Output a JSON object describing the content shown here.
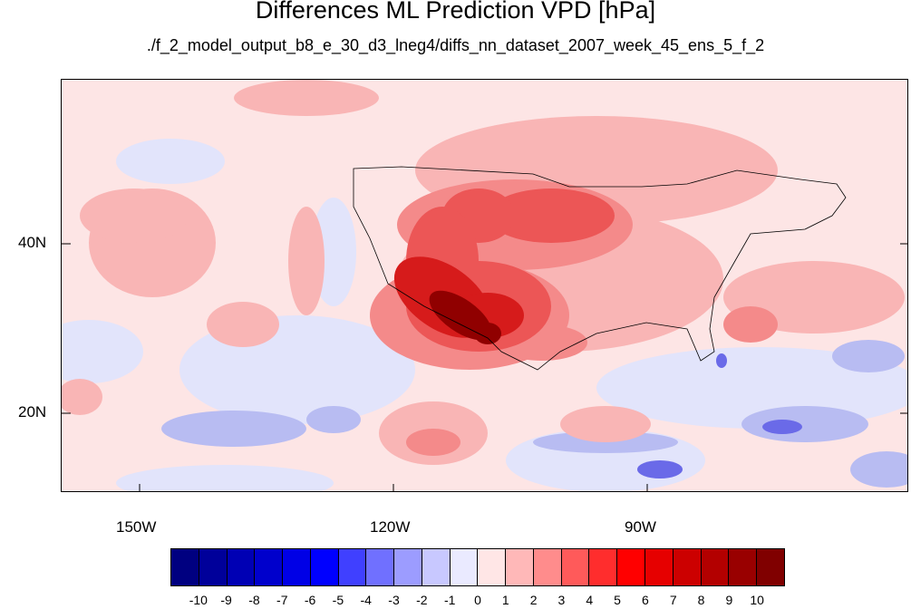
{
  "title": "Differences ML Prediction VPD [hPa]",
  "subtitle": "./f_2_model_output_b8_e_30_d3_lneg4/diffs_nn_dataset_2007_week_45_ens_5_f_2",
  "lat_labels": [
    "40N",
    "20N"
  ],
  "lon_labels": [
    "150W",
    "120W",
    "90W"
  ],
  "colorbar": {
    "labels": [
      "-10",
      "-9",
      "-8",
      "-7",
      "-6",
      "-5",
      "-4",
      "-3",
      "-2",
      "-1",
      "0",
      "1",
      "2",
      "3",
      "4",
      "5",
      "6",
      "7",
      "8",
      "9",
      "10"
    ],
    "colors": [
      "#000080",
      "#00009a",
      "#0000b4",
      "#0000cc",
      "#0000e6",
      "#0000ff",
      "#4040ff",
      "#7070ff",
      "#9c9cff",
      "#c8c8ff",
      "#eaeaff",
      "#ffe6e6",
      "#ffb8b8",
      "#ff8c8c",
      "#ff5a5a",
      "#ff2d2d",
      "#ff0000",
      "#e60000",
      "#cc0000",
      "#b30000",
      "#990000",
      "#800000"
    ]
  }
}
